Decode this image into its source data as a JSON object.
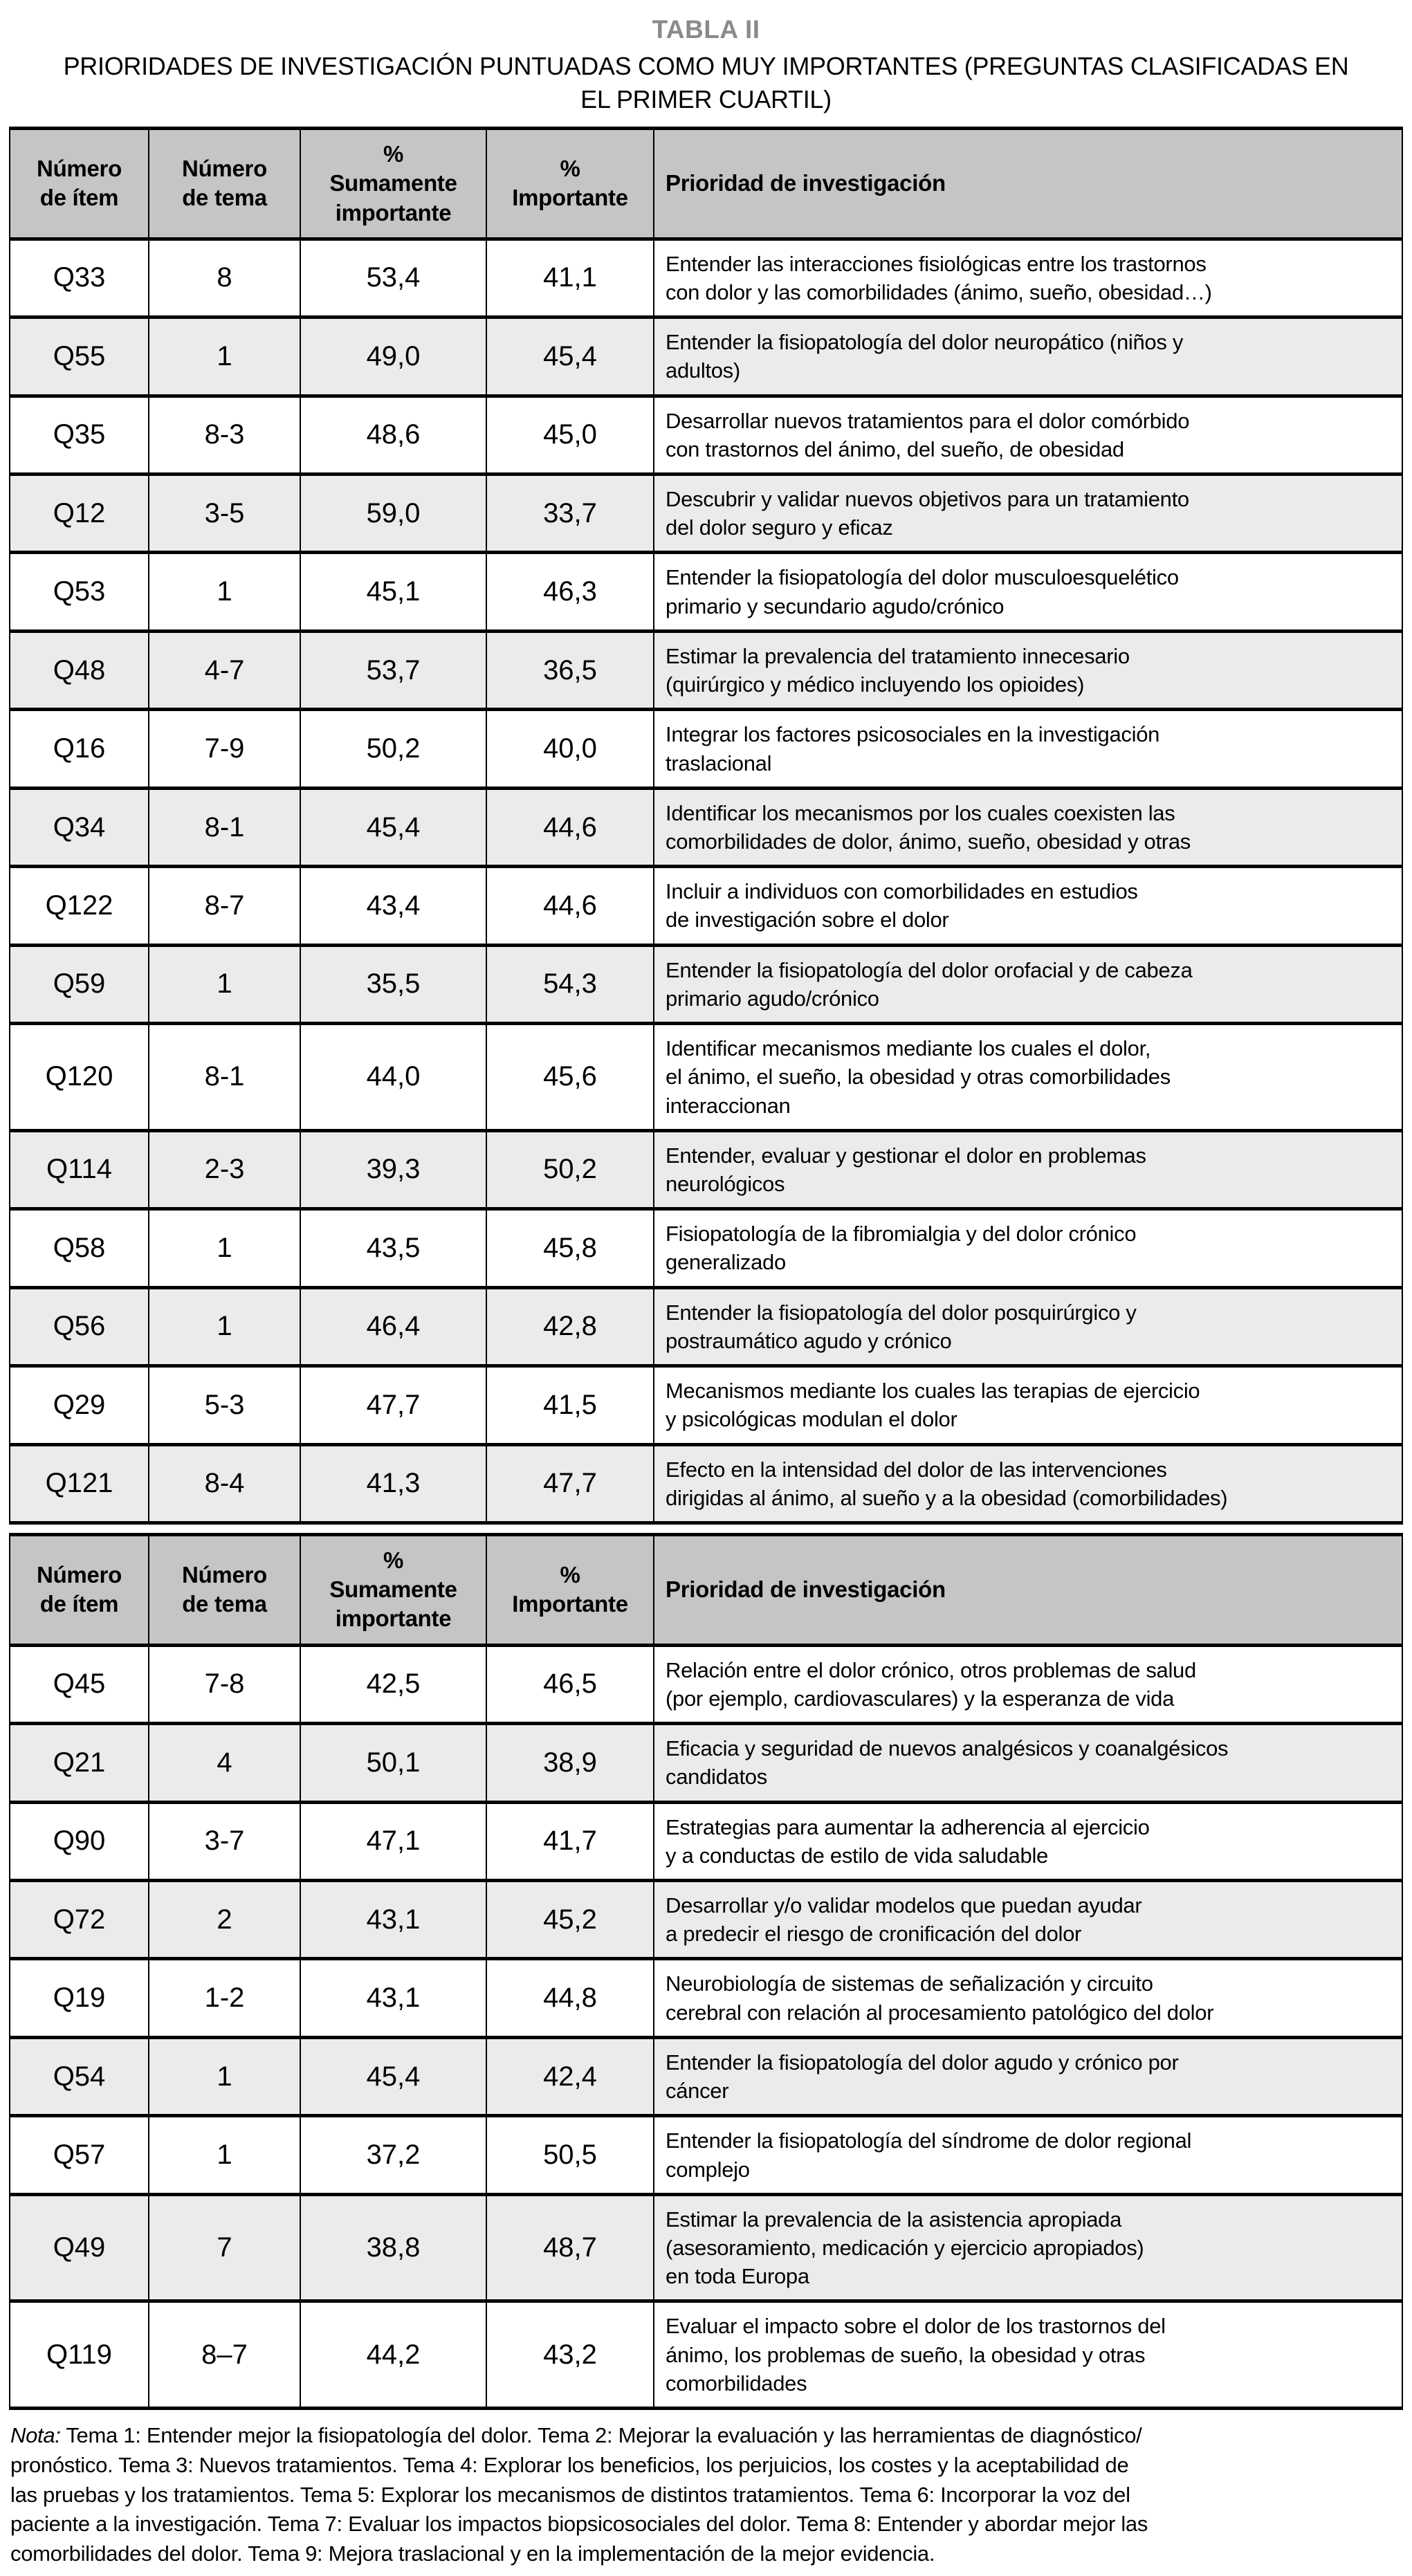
{
  "page": {
    "title": "TABLA II",
    "subtitle": "PRIORIDADES DE INVESTIGACIÓN PUNTUADAS COMO MUY IMPORTANTES (PREGUNTAS CLASIFICADAS EN\nEL PRIMER CUARTIL)"
  },
  "colors": {
    "header_bg": "#c5c5c5",
    "row_alt_bg": "#ebebeb",
    "border": "#000000",
    "title_color": "#8a8a8a"
  },
  "table": {
    "columns": [
      {
        "label": "Número\nde ítem"
      },
      {
        "label": "Número\nde tema"
      },
      {
        "label": "%\nSumamente\nimportante"
      },
      {
        "label": "%\nImportante"
      },
      {
        "label": "Prioridad de investigación"
      }
    ],
    "sections": [
      {
        "rows": [
          {
            "item": "Q33",
            "tema": "8",
            "muy": "53,4",
            "imp": "41,1",
            "prioridad": "Entender las interacciones fisiológicas entre los trastornos\ncon dolor y las comorbilidades (ánimo, sueño, obesidad…)"
          },
          {
            "item": "Q55",
            "tema": "1",
            "muy": "49,0",
            "imp": "45,4",
            "prioridad": "Entender la fisiopatología del dolor neuropático (niños y\nadultos)"
          },
          {
            "item": "Q35",
            "tema": "8-3",
            "muy": "48,6",
            "imp": "45,0",
            "prioridad": "Desarrollar nuevos tratamientos para el dolor comórbido\ncon trastornos del ánimo, del sueño, de obesidad"
          },
          {
            "item": "Q12",
            "tema": "3-5",
            "muy": "59,0",
            "imp": "33,7",
            "prioridad": "Descubrir y validar nuevos objetivos para un tratamiento\ndel dolor seguro y eficaz"
          },
          {
            "item": "Q53",
            "tema": "1",
            "muy": "45,1",
            "imp": "46,3",
            "prioridad": "Entender la fisiopatología del dolor musculoesquelético\nprimario y secundario agudo/crónico"
          },
          {
            "item": "Q48",
            "tema": "4-7",
            "muy": "53,7",
            "imp": "36,5",
            "prioridad": "Estimar la prevalencia del tratamiento innecesario\n(quirúrgico y médico incluyendo los opioides)"
          },
          {
            "item": "Q16",
            "tema": "7-9",
            "muy": "50,2",
            "imp": "40,0",
            "prioridad": "Integrar los factores psicosociales en la investigación\ntraslacional"
          },
          {
            "item": "Q34",
            "tema": "8-1",
            "muy": "45,4",
            "imp": "44,6",
            "prioridad": "Identificar los mecanismos por los cuales coexisten las\ncomorbilidades de dolor, ánimo, sueño, obesidad y otras"
          },
          {
            "item": "Q122",
            "tema": "8-7",
            "muy": "43,4",
            "imp": "44,6",
            "prioridad": "Incluir a individuos con comorbilidades en estudios\nde investigación sobre el dolor"
          },
          {
            "item": "Q59",
            "tema": "1",
            "muy": "35,5",
            "imp": "54,3",
            "prioridad": "Entender la fisiopatología del dolor orofacial y de cabeza\nprimario agudo/crónico"
          },
          {
            "item": "Q120",
            "tema": "8-1",
            "muy": "44,0",
            "imp": "45,6",
            "prioridad": "Identificar mecanismos mediante los cuales el dolor,\nel ánimo, el sueño, la obesidad y otras comorbilidades\ninteraccionan"
          },
          {
            "item": "Q114",
            "tema": "2-3",
            "muy": "39,3",
            "imp": "50,2",
            "prioridad": "Entender, evaluar y gestionar el dolor en problemas\nneurológicos"
          },
          {
            "item": "Q58",
            "tema": "1",
            "muy": "43,5",
            "imp": "45,8",
            "prioridad": "Fisiopatología de la fibromialgia y del dolor crónico\ngeneralizado"
          },
          {
            "item": "Q56",
            "tema": "1",
            "muy": "46,4",
            "imp": "42,8",
            "prioridad": "Entender la fisiopatología del dolor posquirúrgico y\npostraumático agudo y crónico"
          },
          {
            "item": "Q29",
            "tema": "5-3",
            "muy": "47,7",
            "imp": "41,5",
            "prioridad": "Mecanismos mediante los cuales las terapias de ejercicio\ny psicológicas modulan el dolor"
          },
          {
            "item": "Q121",
            "tema": "8-4",
            "muy": "41,3",
            "imp": "47,7",
            "prioridad": "Efecto en la intensidad del dolor de las intervenciones\ndirigidas al ánimo, al sueño y a la obesidad (comorbilidades)"
          }
        ]
      },
      {
        "rows": [
          {
            "item": "Q45",
            "tema": "7-8",
            "muy": "42,5",
            "imp": "46,5",
            "prioridad": "Relación entre el dolor crónico, otros problemas de salud\n(por ejemplo, cardiovasculares) y la esperanza de vida"
          },
          {
            "item": "Q21",
            "tema": "4",
            "muy": "50,1",
            "imp": "38,9",
            "prioridad": "Eficacia y seguridad de nuevos analgésicos y coanalgésicos\ncandidatos"
          },
          {
            "item": "Q90",
            "tema": "3-7",
            "muy": "47,1",
            "imp": "41,7",
            "prioridad": "Estrategias para aumentar la adherencia al ejercicio\ny a conductas de estilo de vida saludable"
          },
          {
            "item": "Q72",
            "tema": "2",
            "muy": "43,1",
            "imp": "45,2",
            "prioridad": "Desarrollar y/o validar modelos que puedan ayudar\na predecir el riesgo de cronificación del dolor"
          },
          {
            "item": "Q19",
            "tema": "1-2",
            "muy": "43,1",
            "imp": "44,8",
            "prioridad": "Neurobiología de sistemas de señalización y circuito\ncerebral con relación al procesamiento patológico del dolor"
          },
          {
            "item": "Q54",
            "tema": "1",
            "muy": "45,4",
            "imp": "42,4",
            "prioridad": "Entender la fisiopatología del dolor agudo y crónico por\ncáncer"
          },
          {
            "item": "Q57",
            "tema": "1",
            "muy": "37,2",
            "imp": "50,5",
            "prioridad": "Entender la fisiopatología del síndrome de dolor regional\ncomplejo"
          },
          {
            "item": "Q49",
            "tema": "7",
            "muy": "38,8",
            "imp": "48,7",
            "prioridad": "Estimar la prevalencia de la asistencia apropiada\n(asesoramiento, medicación y ejercicio apropiados)\nen toda Europa"
          },
          {
            "item": "Q119",
            "tema": "8–7",
            "muy": "44,2",
            "imp": "43,2",
            "prioridad": "Evaluar el impacto sobre el dolor de los trastornos del\nánimo, los problemas de sueño, la obesidad y otras\ncomorbilidades"
          }
        ]
      }
    ]
  },
  "note": {
    "label": "Nota:",
    "text": " Tema 1: Entender mejor la fisiopatología del dolor. Tema 2: Mejorar la evaluación y las herramientas de diagnóstico/\npronóstico. Tema 3: Nuevos tratamientos. Tema 4: Explorar los beneficios, los perjuicios, los costes y la aceptabilidad de\nlas pruebas y los tratamientos. Tema 5: Explorar los mecanismos de distintos tratamientos. Tema 6: Incorporar la voz del\npaciente a la investigación. Tema 7: Evaluar los impactos biopsicosociales del dolor. Tema 8: Entender y abordar mejor las\ncomorbilidades del dolor. Tema 9: Mejora traslacional y en la implementación de la mejor evidencia."
  }
}
